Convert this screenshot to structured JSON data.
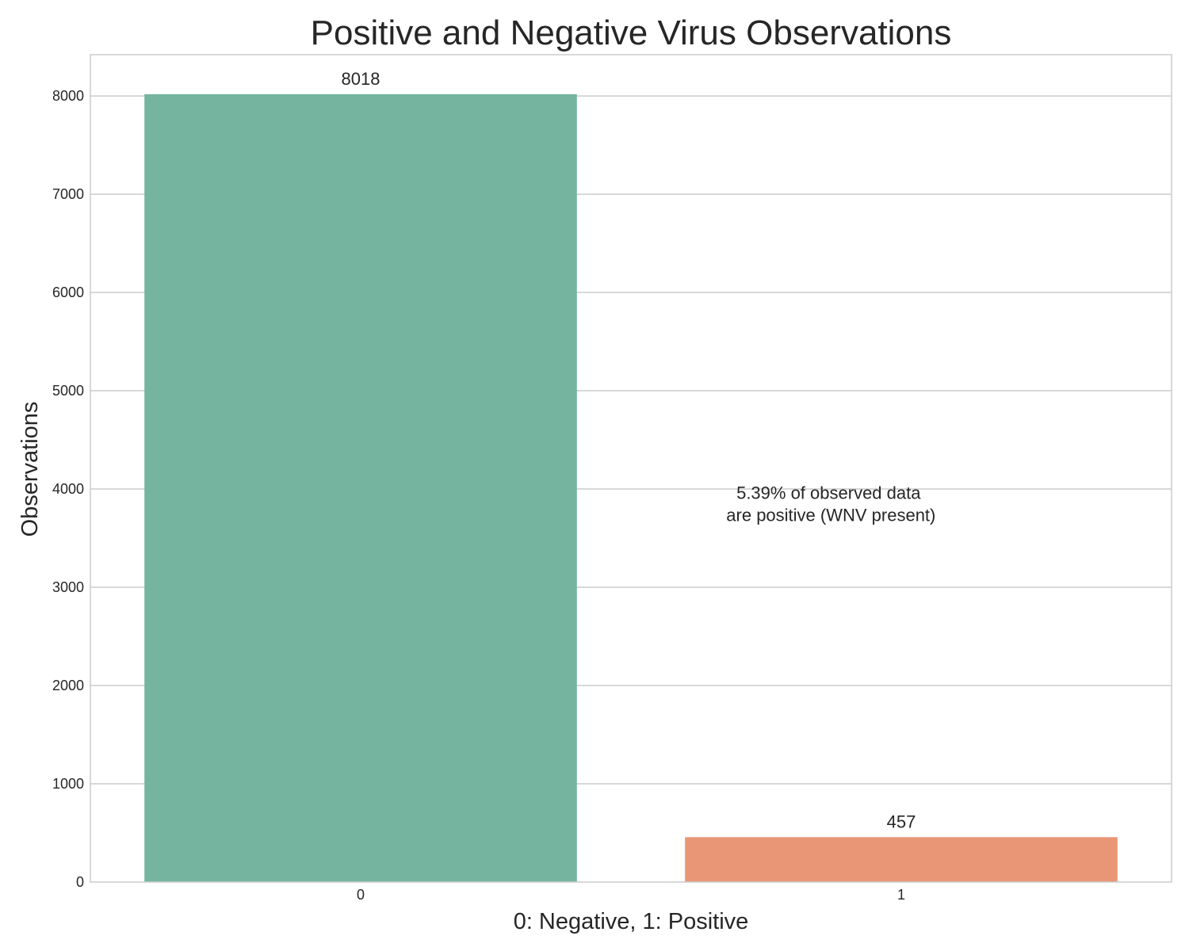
{
  "chart_data": {
    "type": "bar",
    "title": "Positive and Negative Virus Observations",
    "xlabel": "0: Negative, 1: Positive",
    "ylabel": "Observations",
    "categories": [
      "0",
      "1"
    ],
    "values": [
      8018,
      457
    ],
    "data_labels": [
      "8018",
      "457"
    ],
    "colors": [
      "#75b5a0",
      "#e89675"
    ],
    "ylim": [
      0,
      8420
    ],
    "yticks": [
      0,
      1000,
      2000,
      3000,
      4000,
      5000,
      6000,
      7000,
      8000
    ],
    "ytick_labels": [
      "0",
      "1000",
      "2000",
      "3000",
      "4000",
      "5000",
      "6000",
      "7000",
      "8000"
    ],
    "grid": true,
    "grid_color": "#cccccc",
    "annotation": {
      "lines": [
        "5.39% of observed data",
        "are positive (WNV present)"
      ],
      "x": 0.87,
      "y": 3900
    }
  }
}
